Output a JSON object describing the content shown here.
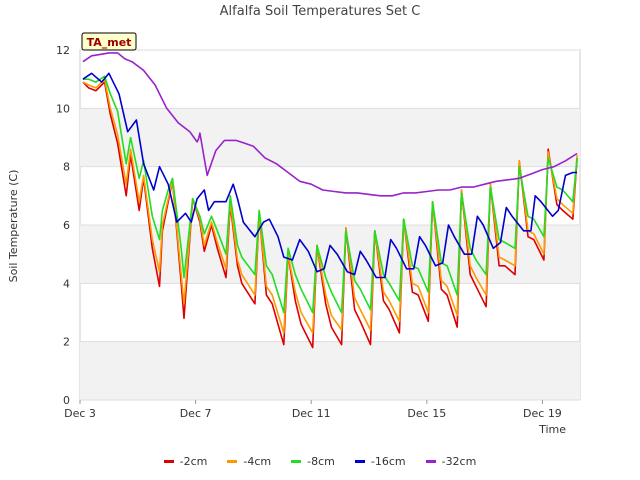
{
  "chart_data": {
    "type": "line",
    "title": "Alfalfa Soil Temperatures Set C",
    "xlabel": "Time",
    "ylabel": "Soil Temperature (C)",
    "badge": "TA_met",
    "xlim": [
      0,
      17.3
    ],
    "ylim": [
      0,
      12
    ],
    "x_ticks": [
      {
        "v": 0,
        "label": "Dec 3"
      },
      {
        "v": 4,
        "label": "Dec 7"
      },
      {
        "v": 8,
        "label": "Dec 11"
      },
      {
        "v": 12,
        "label": "Dec 15"
      },
      {
        "v": 16,
        "label": "Dec 19"
      }
    ],
    "y_ticks": [
      0,
      2,
      4,
      6,
      8,
      10,
      12
    ],
    "grid": true,
    "legend_position": "bottom",
    "series": [
      {
        "name": "-2cm",
        "color": "#dd0000",
        "x": [
          0.1,
          0.3,
          0.55,
          0.85,
          1.05,
          1.3,
          1.6,
          1.75,
          2.05,
          2.2,
          2.5,
          2.75,
          2.85,
          3.05,
          3.2,
          3.5,
          3.6,
          3.9,
          4.15,
          4.3,
          4.55,
          4.75,
          5.05,
          5.2,
          5.45,
          5.6,
          6.05,
          6.2,
          6.45,
          6.65,
          7.05,
          7.2,
          7.45,
          7.65,
          8.05,
          8.2,
          8.5,
          8.7,
          9.05,
          9.2,
          9.5,
          9.7,
          10.05,
          10.2,
          10.5,
          10.7,
          11.05,
          11.2,
          11.5,
          11.7,
          12.05,
          12.2,
          12.5,
          12.7,
          13.05,
          13.2,
          13.5,
          13.7,
          14.05,
          14.2,
          14.5,
          14.7,
          15.05,
          15.2,
          15.5,
          15.7,
          16.05,
          16.2,
          16.5,
          16.7,
          17.05,
          17.2
        ],
        "y": [
          10.9,
          10.7,
          10.6,
          10.9,
          9.8,
          8.8,
          7.0,
          8.4,
          6.5,
          7.6,
          5.2,
          3.9,
          5.8,
          6.8,
          7.5,
          4.0,
          2.8,
          6.9,
          6.1,
          5.1,
          6.0,
          5.2,
          4.2,
          6.7,
          4.6,
          4.0,
          3.3,
          6.4,
          3.6,
          3.3,
          1.9,
          5.0,
          3.4,
          2.6,
          1.8,
          5.3,
          3.3,
          2.5,
          1.9,
          5.9,
          3.1,
          2.7,
          1.9,
          5.8,
          3.4,
          3.1,
          2.3,
          6.2,
          3.7,
          3.6,
          2.7,
          6.8,
          3.8,
          3.6,
          2.5,
          7.2,
          4.3,
          3.9,
          3.2,
          7.4,
          4.6,
          4.6,
          4.3,
          8.2,
          5.6,
          5.5,
          4.8,
          8.6,
          6.7,
          6.5,
          6.2,
          8.3
        ]
      },
      {
        "name": "-4cm",
        "color": "#ff9900",
        "x": [
          0.1,
          0.3,
          0.55,
          0.85,
          1.05,
          1.3,
          1.6,
          1.75,
          2.05,
          2.2,
          2.5,
          2.75,
          2.85,
          3.05,
          3.2,
          3.5,
          3.6,
          3.9,
          4.15,
          4.3,
          4.55,
          4.75,
          5.05,
          5.2,
          5.45,
          5.6,
          6.05,
          6.2,
          6.45,
          6.65,
          7.05,
          7.2,
          7.45,
          7.65,
          8.05,
          8.2,
          8.5,
          8.7,
          9.05,
          9.2,
          9.5,
          9.7,
          10.05,
          10.2,
          10.5,
          10.7,
          11.05,
          11.2,
          11.5,
          11.7,
          12.05,
          12.2,
          12.5,
          12.7,
          13.05,
          13.2,
          13.5,
          13.7,
          14.05,
          14.2,
          14.5,
          14.7,
          15.05,
          15.2,
          15.5,
          15.7,
          16.05,
          16.2,
          16.5,
          16.7,
          17.05,
          17.2
        ],
        "y": [
          10.9,
          10.8,
          10.7,
          11.0,
          10.0,
          9.1,
          7.4,
          8.6,
          6.8,
          7.7,
          5.5,
          4.4,
          6.0,
          6.9,
          7.5,
          4.3,
          3.3,
          6.9,
          6.2,
          5.3,
          6.1,
          5.4,
          4.5,
          6.8,
          4.8,
          4.3,
          3.6,
          6.4,
          3.9,
          3.6,
          2.3,
          5.0,
          3.7,
          3.0,
          2.3,
          5.3,
          3.6,
          2.9,
          2.4,
          5.9,
          3.5,
          3.1,
          2.4,
          5.8,
          3.7,
          3.4,
          2.7,
          6.2,
          4.0,
          3.9,
          3.0,
          6.8,
          4.1,
          3.9,
          2.9,
          7.2,
          4.6,
          4.2,
          3.6,
          7.4,
          4.9,
          4.8,
          4.6,
          8.2,
          5.8,
          5.7,
          5.0,
          8.5,
          6.9,
          6.7,
          6.4,
          8.4
        ]
      },
      {
        "name": "-8cm",
        "color": "#22dd22",
        "x": [
          0.1,
          0.3,
          0.55,
          0.85,
          1.05,
          1.3,
          1.6,
          1.75,
          2.05,
          2.2,
          2.5,
          2.75,
          2.85,
          3.05,
          3.2,
          3.5,
          3.6,
          3.9,
          4.15,
          4.3,
          4.55,
          4.75,
          5.05,
          5.2,
          5.45,
          5.6,
          6.05,
          6.2,
          6.45,
          6.65,
          7.05,
          7.2,
          7.45,
          7.65,
          8.05,
          8.2,
          8.5,
          8.7,
          9.05,
          9.2,
          9.5,
          9.7,
          10.05,
          10.2,
          10.5,
          10.7,
          11.05,
          11.2,
          11.5,
          11.7,
          12.05,
          12.2,
          12.5,
          12.7,
          13.05,
          13.2,
          13.5,
          13.7,
          14.05,
          14.2,
          14.5,
          14.7,
          15.05,
          15.2,
          15.5,
          15.7,
          16.05,
          16.2,
          16.5,
          16.7,
          17.05,
          17.2
        ],
        "y": [
          11.0,
          11.0,
          10.9,
          11.1,
          10.5,
          9.9,
          8.1,
          9.0,
          7.6,
          8.2,
          6.3,
          5.5,
          6.5,
          7.2,
          7.6,
          5.2,
          4.2,
          6.9,
          6.3,
          5.7,
          6.3,
          5.8,
          5.0,
          7.0,
          5.3,
          4.9,
          4.3,
          6.5,
          4.6,
          4.3,
          3.0,
          5.2,
          4.3,
          3.8,
          3.0,
          5.3,
          4.2,
          3.7,
          3.0,
          5.8,
          4.1,
          3.8,
          3.1,
          5.8,
          4.3,
          4.0,
          3.4,
          6.2,
          4.6,
          4.5,
          3.7,
          6.8,
          4.7,
          4.6,
          3.6,
          7.1,
          5.2,
          4.8,
          4.3,
          7.3,
          5.5,
          5.4,
          5.2,
          8.0,
          6.3,
          6.2,
          5.6,
          8.3,
          7.3,
          7.2,
          6.8,
          8.3
        ]
      },
      {
        "name": "-16cm",
        "color": "#0000cc",
        "x": [
          0.1,
          0.4,
          0.75,
          1.0,
          1.35,
          1.65,
          1.95,
          2.2,
          2.55,
          2.75,
          3.05,
          3.35,
          3.65,
          3.85,
          4.05,
          4.3,
          4.45,
          4.65,
          5.05,
          5.3,
          5.45,
          5.65,
          6.05,
          6.35,
          6.55,
          6.85,
          7.05,
          7.35,
          7.6,
          7.9,
          8.2,
          8.45,
          8.65,
          8.9,
          9.25,
          9.5,
          9.7,
          9.9,
          10.25,
          10.55,
          10.75,
          10.95,
          11.3,
          11.55,
          11.75,
          11.95,
          12.3,
          12.55,
          12.75,
          12.95,
          13.3,
          13.55,
          13.75,
          13.95,
          14.3,
          14.55,
          14.75,
          14.95,
          15.35,
          15.6,
          15.75,
          15.95,
          16.35,
          16.55,
          16.8,
          17.05,
          17.2
        ],
        "y": [
          11.0,
          11.2,
          10.9,
          11.2,
          10.5,
          9.2,
          9.6,
          8.1,
          7.2,
          8.0,
          7.4,
          6.1,
          6.4,
          6.1,
          6.9,
          7.2,
          6.5,
          6.8,
          6.8,
          7.4,
          6.9,
          6.1,
          5.6,
          6.1,
          6.2,
          5.6,
          4.9,
          4.8,
          5.5,
          5.1,
          4.4,
          4.5,
          5.3,
          5.0,
          4.4,
          4.3,
          5.1,
          4.8,
          4.2,
          4.2,
          5.5,
          5.2,
          4.5,
          4.5,
          5.6,
          5.3,
          4.6,
          4.7,
          6.0,
          5.6,
          5.0,
          5.0,
          6.3,
          6.0,
          5.2,
          5.4,
          6.6,
          6.3,
          5.8,
          5.8,
          7.0,
          6.8,
          6.3,
          6.5,
          7.7,
          7.8,
          7.8
        ]
      },
      {
        "name": "-32cm",
        "color": "#9922cc",
        "x": [
          0.1,
          0.4,
          0.7,
          1.0,
          1.3,
          1.55,
          1.8,
          2.2,
          2.6,
          3.0,
          3.4,
          3.8,
          4.05,
          4.1,
          4.15,
          4.4,
          4.7,
          5.0,
          5.4,
          5.7,
          6.0,
          6.4,
          6.8,
          7.2,
          7.6,
          8.0,
          8.4,
          8.8,
          9.2,
          9.6,
          10.0,
          10.4,
          10.8,
          11.2,
          11.6,
          12.0,
          12.4,
          12.8,
          13.2,
          13.6,
          14.0,
          14.4,
          14.8,
          15.2,
          15.6,
          16.0,
          16.4,
          16.8,
          17.2
        ],
        "y": [
          11.6,
          11.8,
          11.85,
          11.9,
          11.9,
          11.7,
          11.6,
          11.3,
          10.8,
          10.0,
          9.5,
          9.2,
          8.85,
          8.95,
          9.15,
          7.7,
          8.55,
          8.9,
          8.9,
          8.8,
          8.7,
          8.3,
          8.1,
          7.8,
          7.5,
          7.4,
          7.2,
          7.15,
          7.1,
          7.1,
          7.05,
          7.0,
          7.0,
          7.1,
          7.1,
          7.15,
          7.2,
          7.2,
          7.3,
          7.3,
          7.4,
          7.5,
          7.55,
          7.6,
          7.75,
          7.9,
          8.0,
          8.2,
          8.45
        ]
      }
    ]
  }
}
